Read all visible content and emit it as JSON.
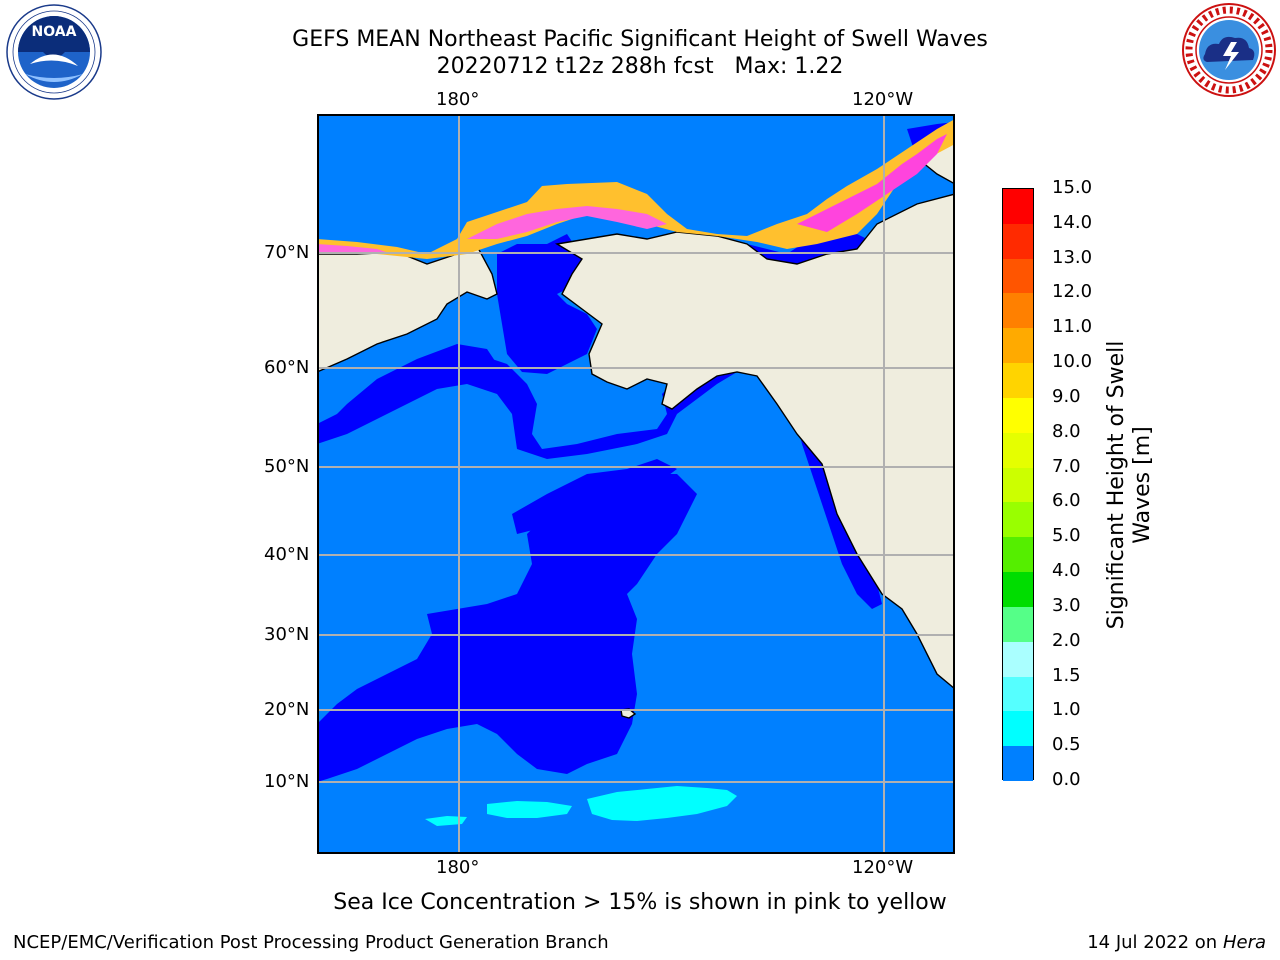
{
  "header": {
    "title_line1": "GEFS MEAN Northeast Pacific Significant Height of Swell Waves",
    "title_line2": "20220712 t12z 288h fcst   Max: 1.22"
  },
  "logos": {
    "left": {
      "icon": "noaa-logo-icon",
      "text": "NOAA",
      "ring_text": "NATIONAL OCEANIC AND ATMOSPHERIC ADMINISTRATION · U.S. DEPARTMENT OF COMMERCE"
    },
    "right": {
      "icon": "nws-logo-icon",
      "ring_text": "NATIONAL WEATHER SERVICE"
    }
  },
  "map": {
    "lon_ticks_top": [
      "180°",
      "120°W"
    ],
    "lon_ticks_bottom": [
      "180°",
      "120°W"
    ],
    "lat_ticks": [
      "70°N",
      "60°N",
      "50°N",
      "40°N",
      "30°N",
      "20°N",
      "10°N"
    ],
    "colors": {
      "land": "#efedde",
      "ocean_low": "#0000ff",
      "ocean_mid": "#0080ff",
      "ocean_high": "#00ffff",
      "ice": "#ff44dd",
      "ice_edge": "#ffc02e"
    }
  },
  "colorbar": {
    "label_line1": "Significant Height of Swell",
    "label_line2": "Waves [m]",
    "labels": [
      "15.0",
      "14.0",
      "13.0",
      "12.0",
      "11.0",
      "10.0",
      "9.0",
      "8.0",
      "7.0",
      "6.0",
      "5.0",
      "4.0",
      "3.0",
      "2.0",
      "1.5",
      "1.0",
      "0.5",
      "0.0"
    ],
    "colors": [
      "#ff0000",
      "#ff2a00",
      "#ff5500",
      "#ff8000",
      "#ffaa00",
      "#ffd400",
      "#ffff00",
      "#e5ff00",
      "#ccff00",
      "#99ff00",
      "#55ee00",
      "#00dd00",
      "#55ff88",
      "#aaffff",
      "#55ffff",
      "#00ffff",
      "#0080ff",
      "#0000ff"
    ]
  },
  "notes": {
    "sea_ice": "Sea Ice Concentration > 15% is shown in pink to yellow"
  },
  "footer": {
    "left": "NCEP/EMC/Verification Post Processing Product Generation Branch",
    "right_date": "14 Jul 2022 on ",
    "right_host": "Hera"
  }
}
